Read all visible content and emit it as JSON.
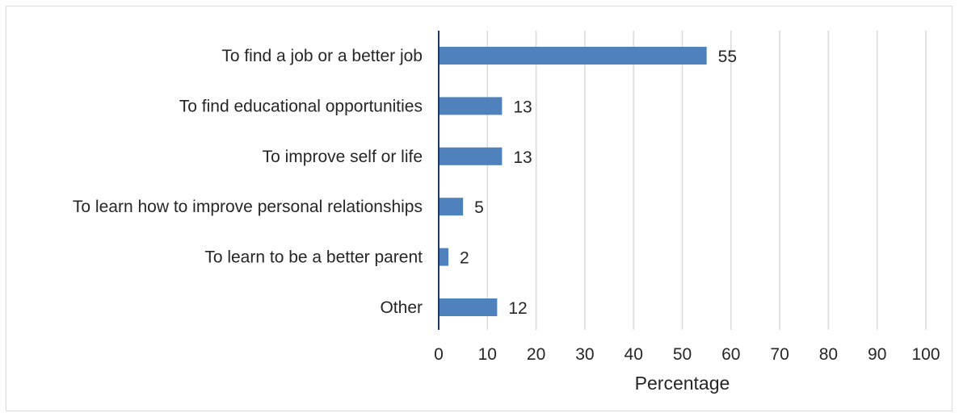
{
  "chart_data": {
    "type": "bar",
    "orientation": "horizontal",
    "categories": [
      "To find a job or a better job",
      "To find educational opportunities",
      "To improve self or life",
      "To learn how to improve personal relationships",
      "To learn to be a better parent",
      "Other"
    ],
    "values": [
      55,
      13,
      13,
      5,
      2,
      12
    ],
    "data_labels": [
      "55",
      "13",
      "13",
      "5",
      "2",
      "12"
    ],
    "xlabel": "Percentage",
    "ylabel": "",
    "title": "",
    "xlim": [
      0,
      100
    ],
    "xticks": [
      "0",
      "10",
      "20",
      "30",
      "40",
      "50",
      "60",
      "70",
      "80",
      "90",
      "100"
    ],
    "grid": "vertical",
    "legend": "none",
    "bar_color": "#4f81bd",
    "axis_color": "#1f3864",
    "grid_color": "#d9d9d9"
  }
}
